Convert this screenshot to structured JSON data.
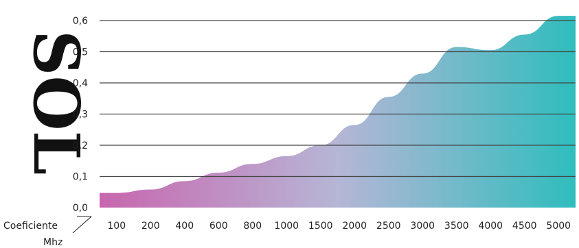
{
  "edge_text": "SOL",
  "chart_data": {
    "type": "area",
    "xlabel": "Mhz",
    "ylabel": "Coeficiente",
    "ylim": [
      0,
      0.6
    ],
    "grid": true,
    "y_ticks": [
      "0,0",
      "0,1",
      "0,2",
      "0,3",
      "0,4",
      "0,5",
      "0,6"
    ],
    "y_tick_values": [
      0,
      0.1,
      0.2,
      0.3,
      0.4,
      0.5,
      0.6
    ],
    "categories": [
      "100",
      "200",
      "400",
      "600",
      "800",
      "1000",
      "1500",
      "2000",
      "2500",
      "3000",
      "3500",
      "4000",
      "4500",
      "5000"
    ],
    "values": [
      0.047,
      0.058,
      0.085,
      0.112,
      0.14,
      0.165,
      0.2,
      0.265,
      0.355,
      0.43,
      0.515,
      0.505,
      0.555,
      0.615
    ],
    "gradient_colors": [
      "#c866ae",
      "#b6b6d6",
      "#2fbdbd"
    ]
  }
}
